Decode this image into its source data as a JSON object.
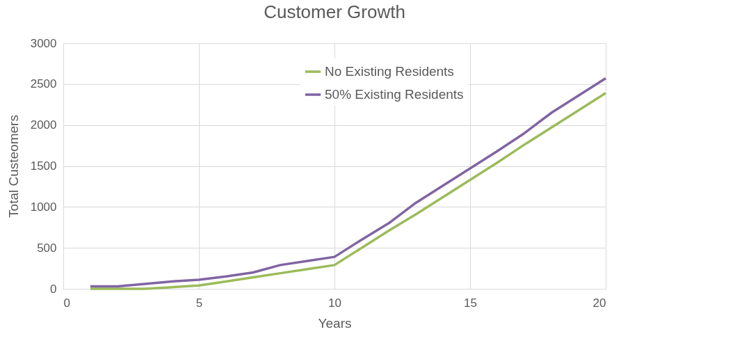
{
  "chart_data": {
    "type": "line",
    "title": "Customer Growth",
    "xlabel": "Years",
    "ylabel": "Total Custeomers",
    "x": [
      1,
      2,
      3,
      4,
      5,
      6,
      7,
      8,
      9,
      10,
      11,
      12,
      13,
      14,
      15,
      16,
      17,
      18,
      19,
      20
    ],
    "series": [
      {
        "name": "No Existing Residents",
        "color": "#9bbb59",
        "values": [
          0,
          0,
          0,
          20,
          40,
          90,
          140,
          190,
          240,
          290,
          500,
          710,
          910,
          1120,
          1330,
          1540,
          1760,
          1970,
          2180,
          2390
        ]
      },
      {
        "name": "50% Existing Residents",
        "color": "#8064a2",
        "values": [
          30,
          30,
          60,
          90,
          110,
          150,
          200,
          290,
          340,
          390,
          600,
          800,
          1050,
          1260,
          1470,
          1680,
          1900,
          2150,
          2360,
          2570
        ]
      }
    ],
    "xlim": [
      0,
      20
    ],
    "xticks": [
      0,
      5,
      10,
      15,
      20
    ],
    "ylim": [
      0,
      3000
    ],
    "yticks": [
      0,
      500,
      1000,
      1500,
      2000,
      2500,
      3000
    ],
    "grid": true,
    "legend": "top right",
    "marker": "none",
    "line_style": "solid"
  }
}
